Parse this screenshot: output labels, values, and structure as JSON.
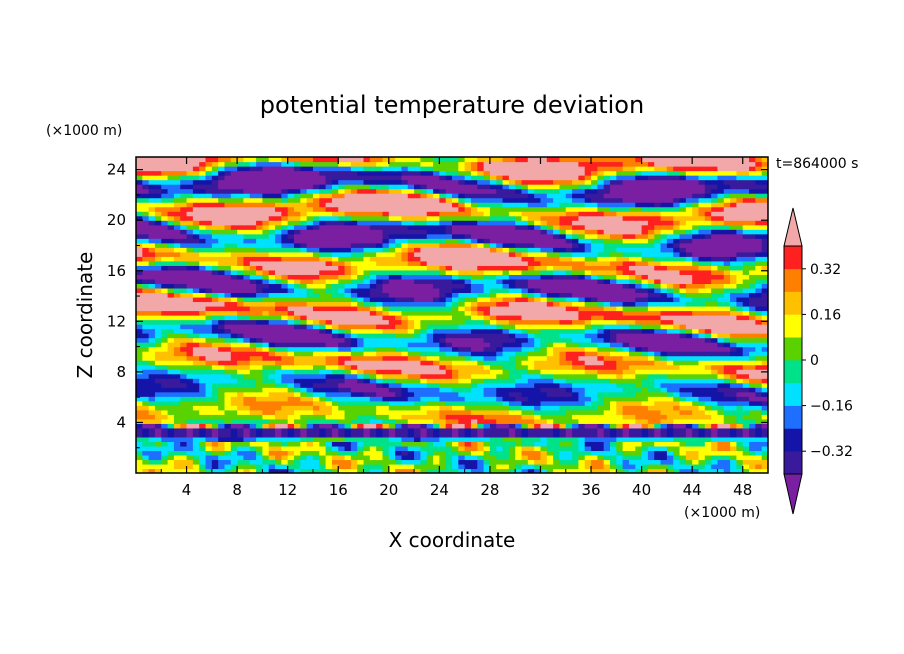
{
  "chart_data": {
    "type": "heatmap",
    "title": "potential temperature deviation",
    "xlabel": "X coordinate",
    "ylabel": "Z coordinate",
    "x_unit": "(×1000 m)",
    "y_unit": "(×1000 m)",
    "time_label": "t=864000 s",
    "xlim": [
      0,
      50
    ],
    "ylim": [
      0,
      25
    ],
    "x_ticks": [
      4,
      8,
      12,
      16,
      20,
      24,
      28,
      32,
      36,
      40,
      44,
      48
    ],
    "y_ticks": [
      4,
      8,
      12,
      16,
      20,
      24
    ],
    "colorbar": {
      "levels": [
        -0.4,
        -0.32,
        -0.24,
        -0.16,
        -0.08,
        0,
        0.08,
        0.16,
        0.24,
        0.32,
        0.4
      ],
      "tick_labels": [
        "0.32",
        "0.16",
        "0",
        "−0.16",
        "−0.32"
      ],
      "tick_values": [
        0.32,
        0.16,
        0,
        -0.16,
        -0.32
      ],
      "colors": [
        "#7a1fa2",
        "#3a1a9c",
        "#1414a8",
        "#1f6fff",
        "#00e0ff",
        "#00e28a",
        "#5ad200",
        "#ffff00",
        "#ffc000",
        "#ff8000",
        "#ff2020",
        "#f2a8a8"
      ],
      "extend": "both"
    }
  }
}
